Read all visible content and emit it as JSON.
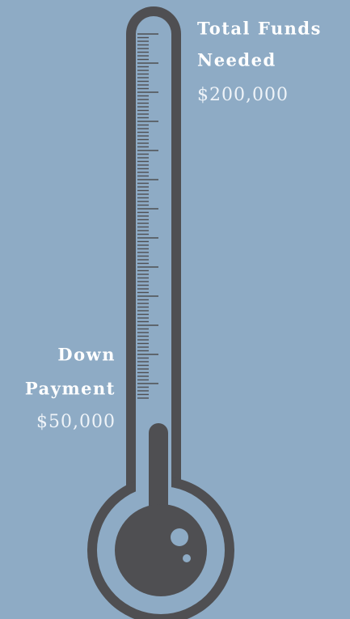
{
  "goal": {
    "label_lines": [
      "Total Funds",
      "Needed"
    ],
    "amount": "$200,000"
  },
  "current": {
    "label_lines": [
      "Down",
      "Payment"
    ],
    "amount": "$50,000"
  }
}
